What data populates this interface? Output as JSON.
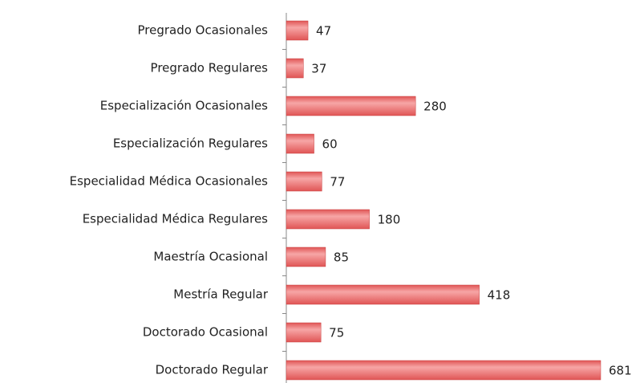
{
  "chart_data": {
    "type": "bar",
    "orientation": "horizontal",
    "categories": [
      "Pregrado Ocasionales",
      "Pregrado Regulares",
      "Especialización Ocasionales",
      "Especialización Regulares",
      "Especialidad Médica Ocasionales",
      "Especialidad Médica Regulares",
      "Maestría Ocasional",
      "Mestría Regular",
      "Doctorado Ocasional",
      "Doctorado Regular"
    ],
    "values": [
      47,
      37,
      280,
      60,
      77,
      180,
      85,
      418,
      75,
      681
    ],
    "color": "#e05555"
  }
}
